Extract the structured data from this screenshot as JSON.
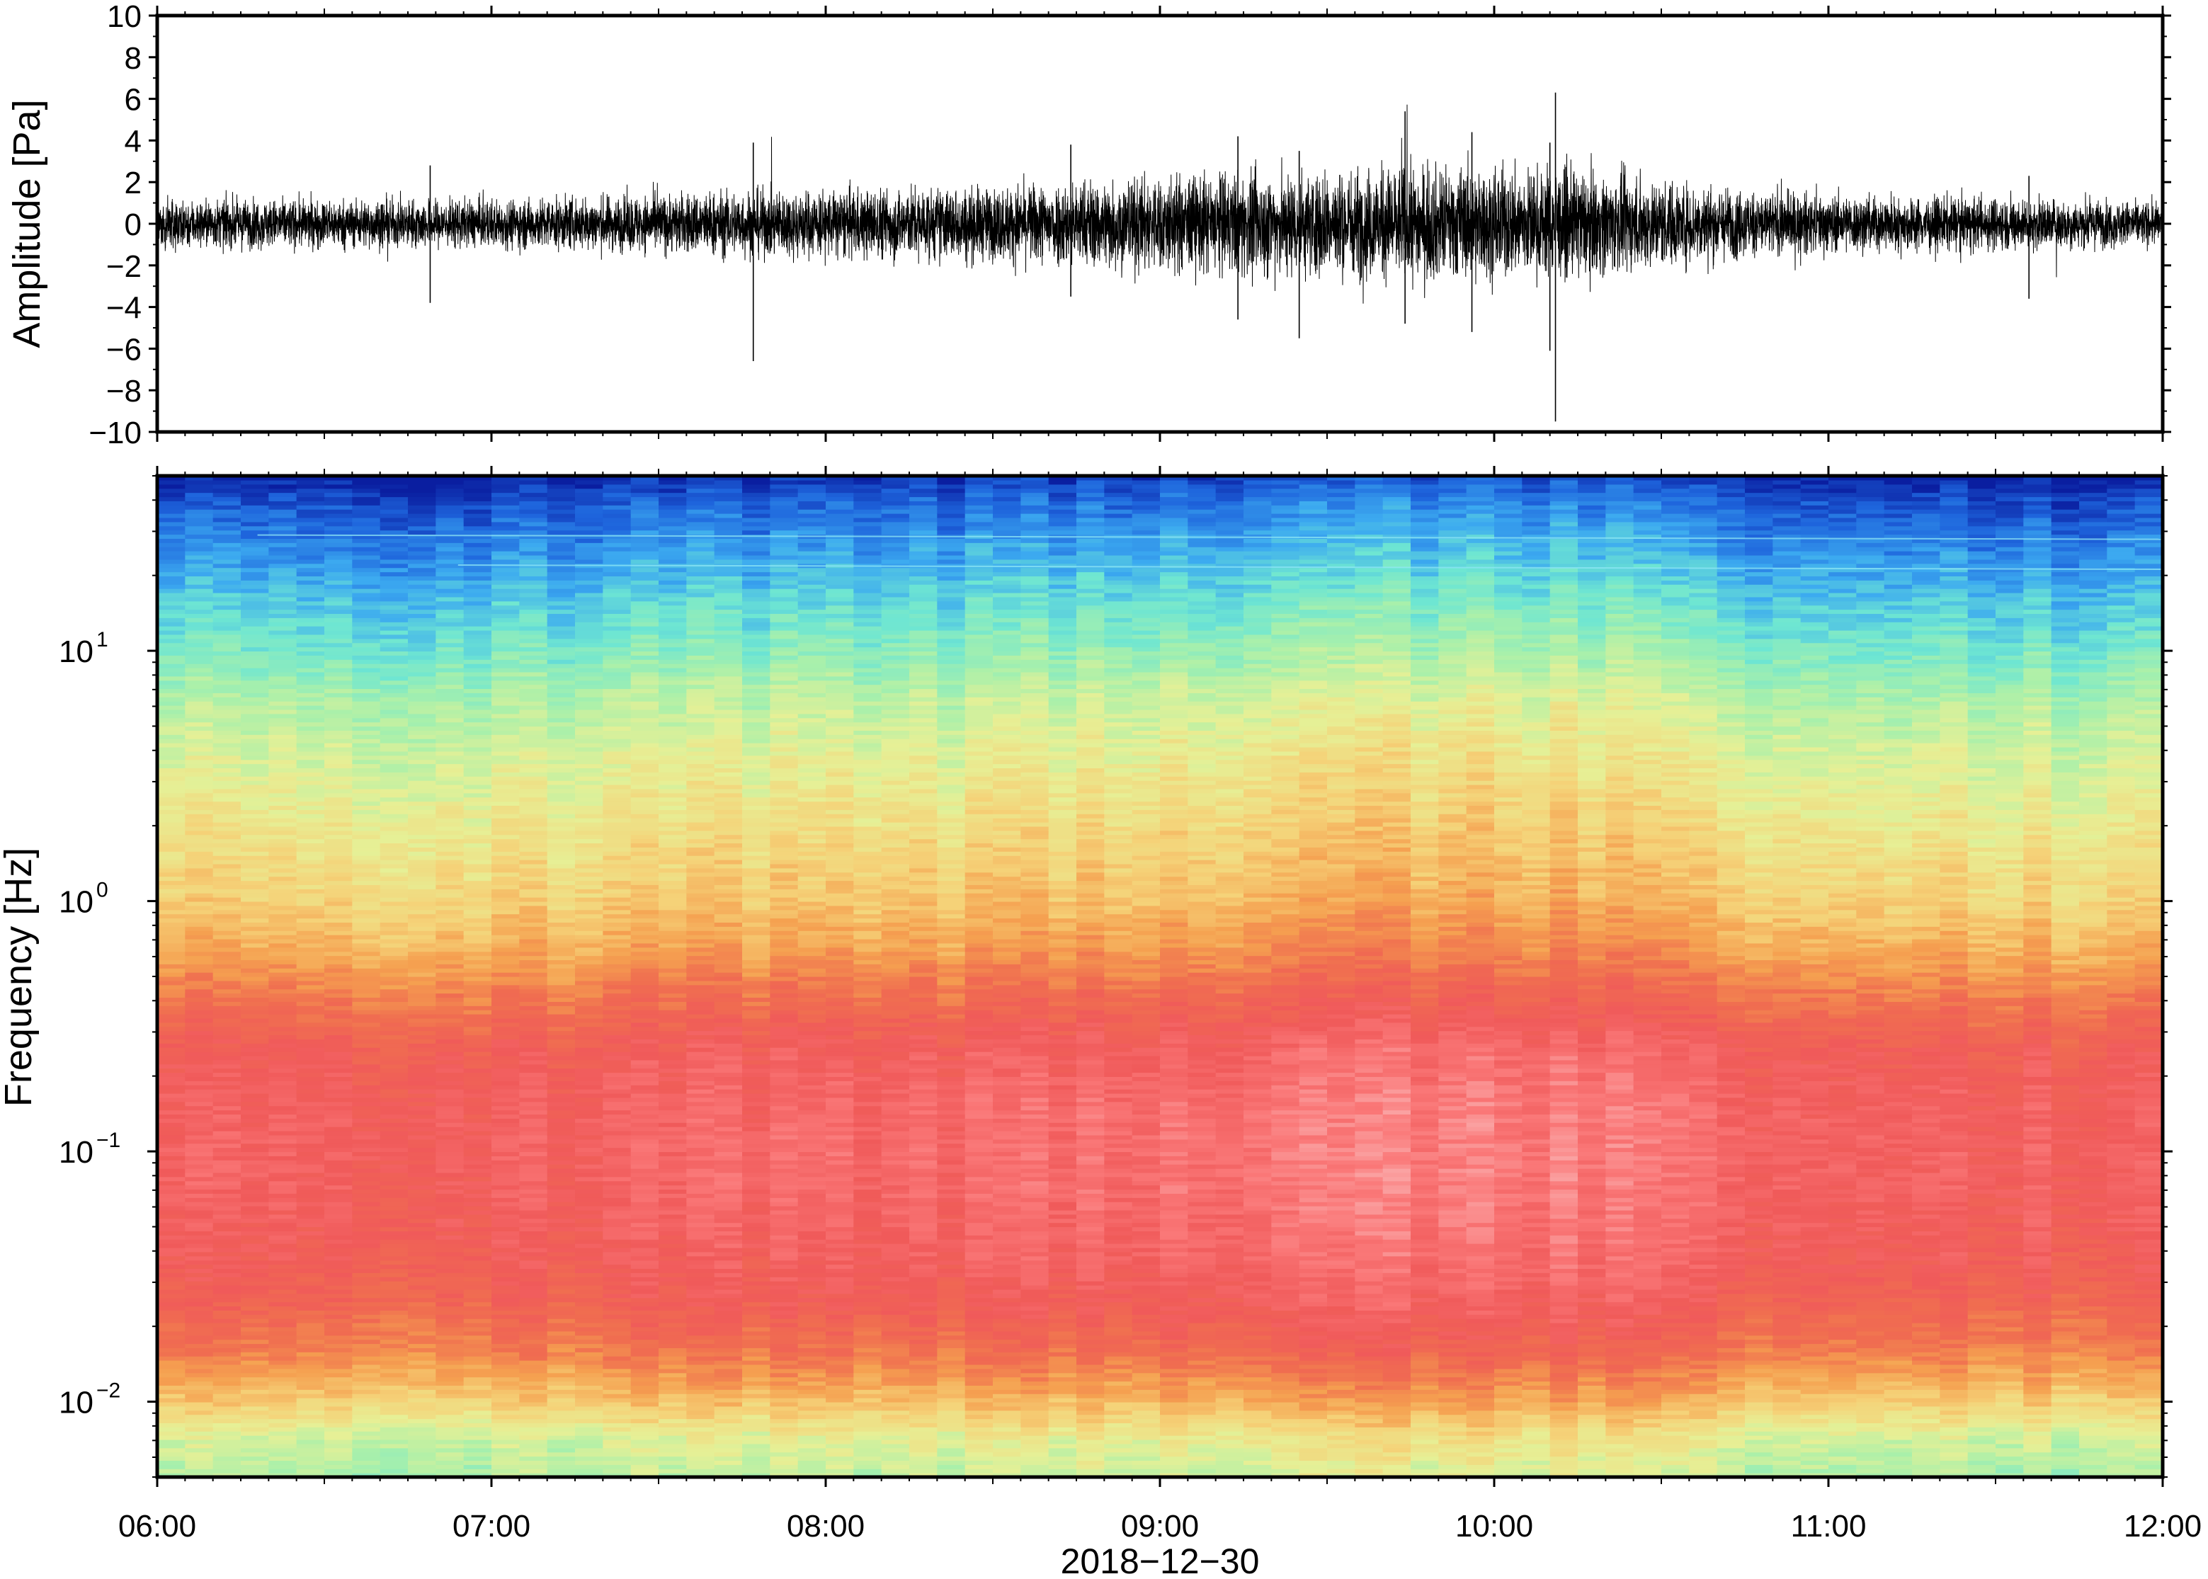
{
  "chart_data": [
    {
      "type": "line",
      "ylabel": "Amplitude [Pa]",
      "ylim": [
        -10,
        10
      ],
      "yticks": [
        10,
        8,
        6,
        4,
        2,
        0,
        -2,
        -4,
        -6,
        -8,
        -10
      ],
      "ytick_labels": [
        "10",
        "8",
        "6",
        "4",
        "2",
        "0",
        "−2",
        "−4",
        "−6",
        "−8",
        "−10"
      ],
      "x_range": [
        "06:00",
        "12:00"
      ],
      "grid": false,
      "series": [
        {
          "color": "#000000",
          "envelope": {
            "hours": [
              6.0,
              6.25,
              6.5,
              6.75,
              7.0,
              7.25,
              7.5,
              7.75,
              8.0,
              8.25,
              8.5,
              8.75,
              9.0,
              9.25,
              9.5,
              9.75,
              10.0,
              10.25,
              10.5,
              10.75,
              11.0,
              11.25,
              11.5,
              11.75,
              12.0
            ],
            "typical_abs_pa": [
              1.0,
              1.0,
              1.0,
              1.0,
              1.0,
              1.1,
              1.2,
              1.4,
              1.4,
              1.5,
              1.5,
              1.8,
              2.0,
              2.1,
              2.2,
              2.4,
              2.3,
              2.2,
              1.8,
              1.4,
              1.2,
              1.1,
              1.1,
              1.0,
              0.9
            ]
          },
          "spikes": [
            {
              "time": "06:49",
              "max": 2.8,
              "min": -3.8
            },
            {
              "time": "07:47",
              "max": 3.9,
              "min": -6.6
            },
            {
              "time": "08:44",
              "max": 3.8,
              "min": -3.5
            },
            {
              "time": "09:14",
              "max": 4.2,
              "min": -4.6
            },
            {
              "time": "09:25",
              "max": 3.5,
              "min": -5.5
            },
            {
              "time": "09:44",
              "max": 5.4,
              "min": -4.8
            },
            {
              "time": "09:56",
              "max": 4.4,
              "min": -5.2
            },
            {
              "time": "10:10",
              "max": 3.9,
              "min": -6.1
            },
            {
              "time": "10:11",
              "max": 6.3,
              "min": -9.5
            },
            {
              "time": "11:36",
              "max": 2.3,
              "min": -3.6
            }
          ]
        }
      ]
    },
    {
      "type": "heatmap",
      "ylabel": "Frequency [Hz]",
      "xlabel": "2018−12−30",
      "x_tick_labels": [
        "06:00",
        "07:00",
        "08:00",
        "09:00",
        "10:00",
        "11:00",
        "12:00"
      ],
      "y_scale": "log",
      "ylim": [
        0.005,
        50
      ],
      "y_tick_labels": [
        {
          "base": "10",
          "exp": "−2",
          "value": 0.01
        },
        {
          "base": "10",
          "exp": "−1",
          "value": 0.1
        },
        {
          "base": "10",
          "exp": "0",
          "value": 1
        },
        {
          "base": "10",
          "exp": "1",
          "value": 10
        }
      ],
      "colormap": [
        "#0a1ea0",
        "#1e64dc",
        "#3caaf0",
        "#6ee6d2",
        "#aaf0aa",
        "#e6f096",
        "#f5d278",
        "#f5a050",
        "#f06e50",
        "#f05a5a",
        "#fa7878",
        "#fab4b4"
      ],
      "color_level_by_freq": {
        "log10_hz": [
          -2.3,
          -2.15,
          -2.0,
          -1.8,
          -1.6,
          -1.4,
          -1.2,
          -1.0,
          -0.8,
          -0.6,
          -0.4,
          -0.2,
          0.0,
          0.2,
          0.4,
          0.6,
          0.8,
          1.0,
          1.2,
          1.4,
          1.6,
          1.7
        ],
        "level": [
          0.4,
          0.45,
          0.58,
          0.72,
          0.8,
          0.84,
          0.86,
          0.87,
          0.86,
          0.83,
          0.74,
          0.64,
          0.57,
          0.53,
          0.49,
          0.45,
          0.4,
          0.32,
          0.25,
          0.17,
          0.09,
          0.02
        ]
      },
      "high_frequency_line_hz": [
        29,
        22
      ]
    }
  ]
}
